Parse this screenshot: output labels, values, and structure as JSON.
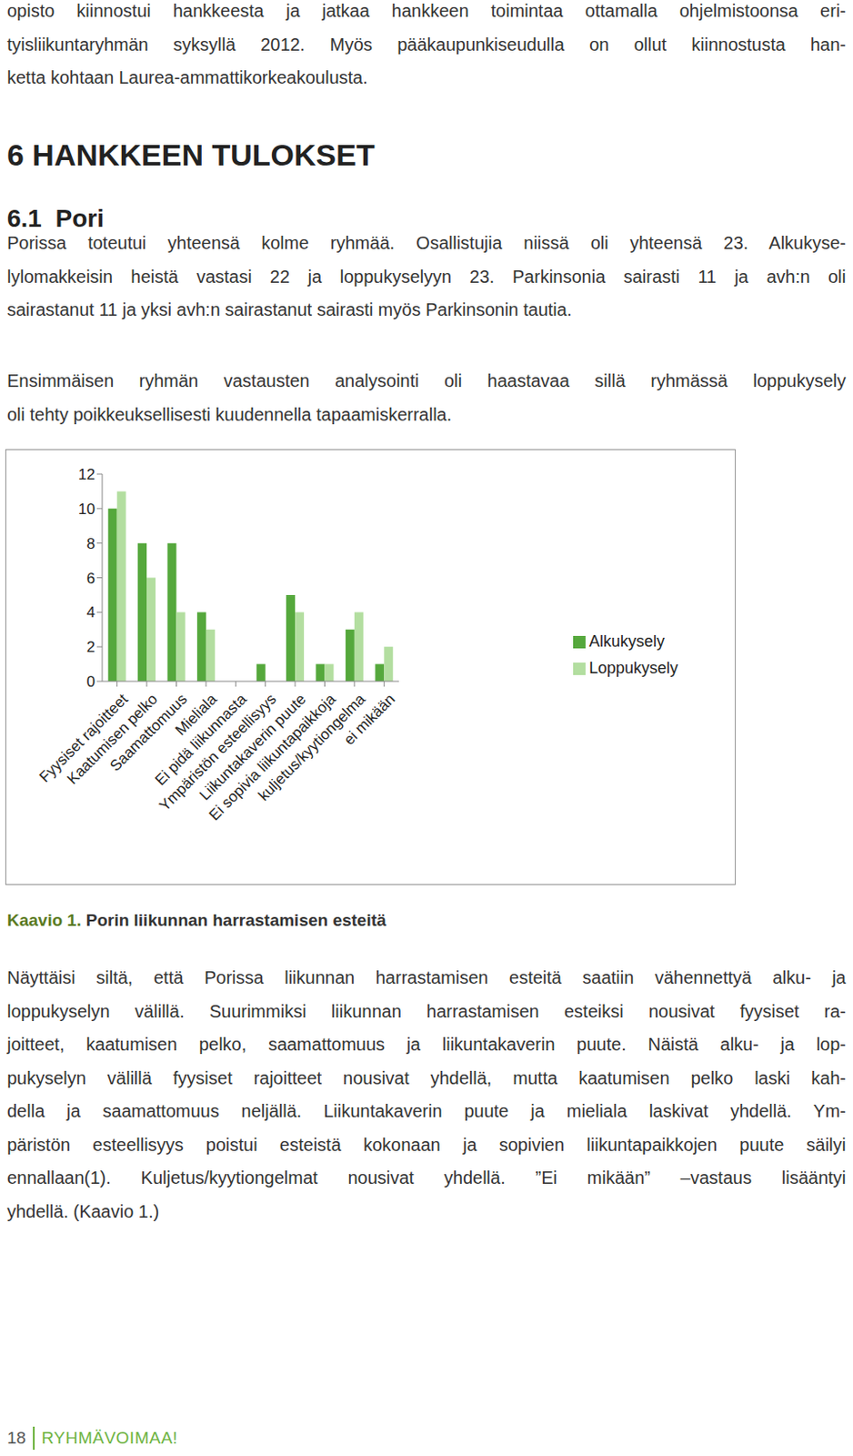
{
  "intro": [
    "opisto kiinnostui hankkeesta ja jatkaa hankkeen toimintaa ottamalla ohjelmistoonsa eri-",
    "tyisliikuntaryhmän syksyllä 2012.  Myös pääkaupunkiseudulla on ollut kiinnostusta han-",
    "ketta kohtaan Laurea-ammattikorkeakoulusta."
  ],
  "heading": "6 HANKKEEN TULOKSET",
  "section": "6.1  Pori",
  "paragraphs": [
    [
      "Porissa toteutui yhteensä kolme ryhmää. Osallistujia niissä oli yhteensä 23. Alkukyse-",
      "lylomakkeisin heistä vastasi 22 ja loppukyselyyn 23. Parkinsonia sairasti 11 ja avh:n oli",
      "sairastanut 11 ja yksi avh:n sairastanut sairasti myös Parkinsonin tautia."
    ],
    [
      "Ensimmäisen ryhmän vastausten analysointi oli haastavaa sillä ryhmässä loppukysely",
      "oli tehty poikkeuksellisesti kuudennella tapaamiskerralla."
    ]
  ],
  "chart_data": {
    "type": "bar",
    "categories": [
      "Fyysiset rajoitteet",
      "Kaatumisen pelko",
      "Saamattomuus",
      "Mieliala",
      "Ei pidä liikunnasta",
      "Ympäristön esteellisyys",
      "Liikuntakaverin puute",
      "Ei sopivia liikuntapaikkoja",
      "kuljetus/kyytiongelma",
      "ei mikään"
    ],
    "series": [
      {
        "name": "Alkukysely",
        "color": "#55a83c",
        "values": [
          10,
          8,
          8,
          4,
          0,
          1,
          5,
          1,
          3,
          1
        ]
      },
      {
        "name": "Loppukysely",
        "color": "#b3dea0",
        "values": [
          11,
          6,
          4,
          3,
          0,
          0,
          4,
          1,
          4,
          2
        ]
      }
    ],
    "ylim": [
      0,
      12
    ],
    "yticks": [
      0,
      2,
      4,
      6,
      8,
      10,
      12
    ],
    "grid": false,
    "legend": "right"
  },
  "caption": {
    "label": "Kaavio 1.",
    "text": "Porin liikunnan harrastamisen esteitä"
  },
  "body": [
    "Näyttäisi siltä, että Porissa liikunnan harrastamisen esteitä saatiin vähennettyä alku- ja",
    "loppukyselyn välillä. Suurimmiksi liikunnan harrastamisen esteiksi nousivat fyysiset ra-",
    "joitteet, kaatumisen pelko, saamattomuus ja liikuntakaverin puute. Näistä alku- ja lop-",
    "pukyselyn välillä fyysiset rajoitteet nousivat yhdellä, mutta kaatumisen pelko laski kah-",
    "della ja saamattomuus neljällä. Liikuntakaverin puute ja mieliala laskivat yhdellä. Ym-",
    "päristön esteellisyys poistui esteistä kokonaan ja sopivien liikuntapaikkojen puute säilyi",
    "ennallaan(1). Kuljetus/kyytiongelmat nousivat yhdellä. ”Ei mikään” –vastaus lisääntyi",
    "yhdellä. (Kaavio 1.)"
  ],
  "page_number": "18",
  "footer": "RYHMÄVOIMAA!"
}
